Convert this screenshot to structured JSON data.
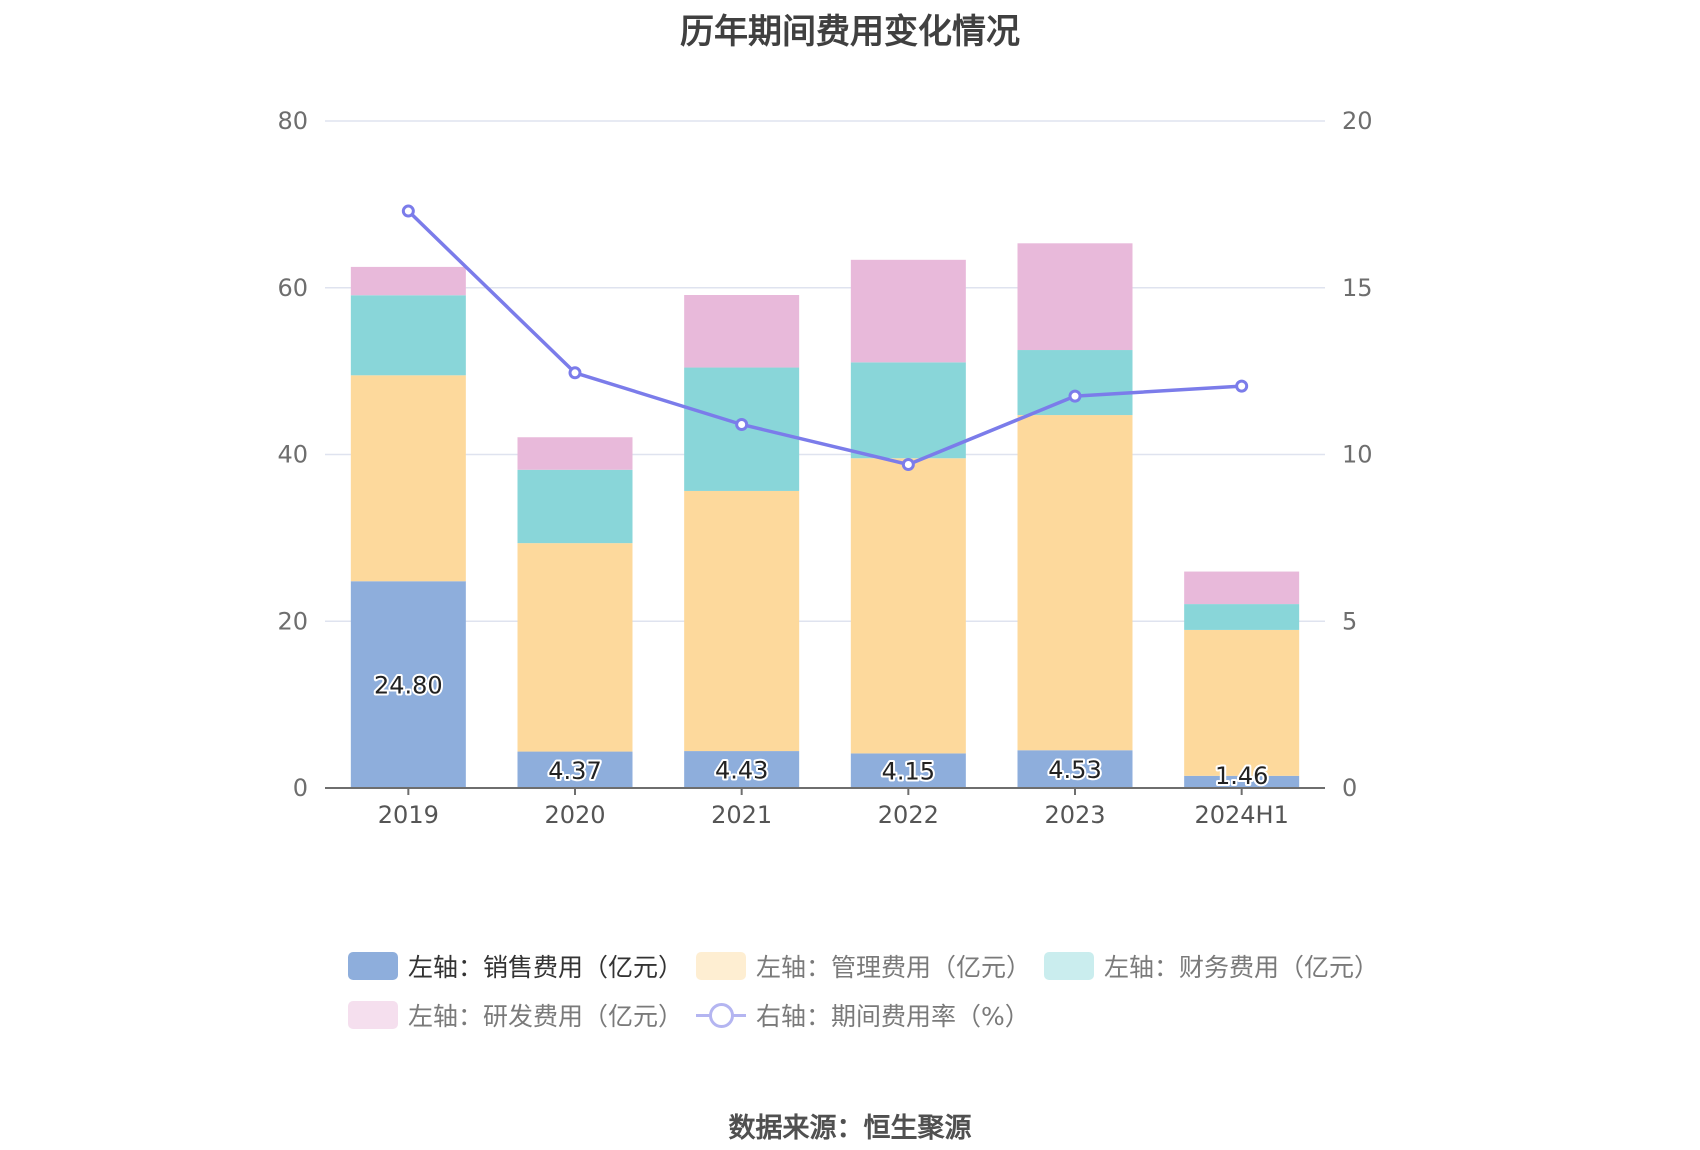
{
  "title": "历年期间费用变化情况",
  "source": "数据来源：恒生聚源",
  "chart_data": {
    "type": "bar",
    "stacked": true,
    "categories": [
      "2019",
      "2020",
      "2021",
      "2022",
      "2023",
      "2024H1"
    ],
    "left_axis": {
      "min": 0,
      "max": 80,
      "ticks": [
        0,
        20,
        40,
        60,
        80
      ]
    },
    "right_axis": {
      "min": 0,
      "max": 20,
      "ticks": [
        0,
        5,
        10,
        15,
        20
      ]
    },
    "grid": true,
    "legend_position": "bottom",
    "series": [
      {
        "name": "左轴：销售费用（亿元）",
        "axis": "left",
        "color": "#8eaedc",
        "values": [
          24.8,
          4.37,
          4.43,
          4.15,
          4.53,
          1.46
        ],
        "labels": [
          "24.80",
          "4.37",
          "4.43",
          "4.15",
          "4.53",
          "1.46"
        ]
      },
      {
        "name": "左轴：管理费用（亿元）",
        "axis": "left",
        "color": "#fdd99c",
        "values": [
          24.7,
          25.0,
          31.2,
          35.4,
          40.2,
          17.5
        ]
      },
      {
        "name": "左轴：财务费用（亿元）",
        "axis": "left",
        "color": "#89d6d9",
        "values": [
          9.6,
          8.8,
          14.8,
          11.5,
          7.8,
          3.1
        ]
      },
      {
        "name": "左轴：研发费用（亿元）",
        "axis": "left",
        "color": "#e8b9da",
        "values": [
          3.4,
          3.9,
          8.7,
          12.3,
          12.8,
          3.9
        ]
      },
      {
        "name": "右轴：期间费用率（%）",
        "axis": "right",
        "type": "line",
        "color": "#7b7cea",
        "values": [
          17.3,
          12.45,
          10.9,
          9.7,
          11.75,
          12.05
        ]
      }
    ]
  }
}
